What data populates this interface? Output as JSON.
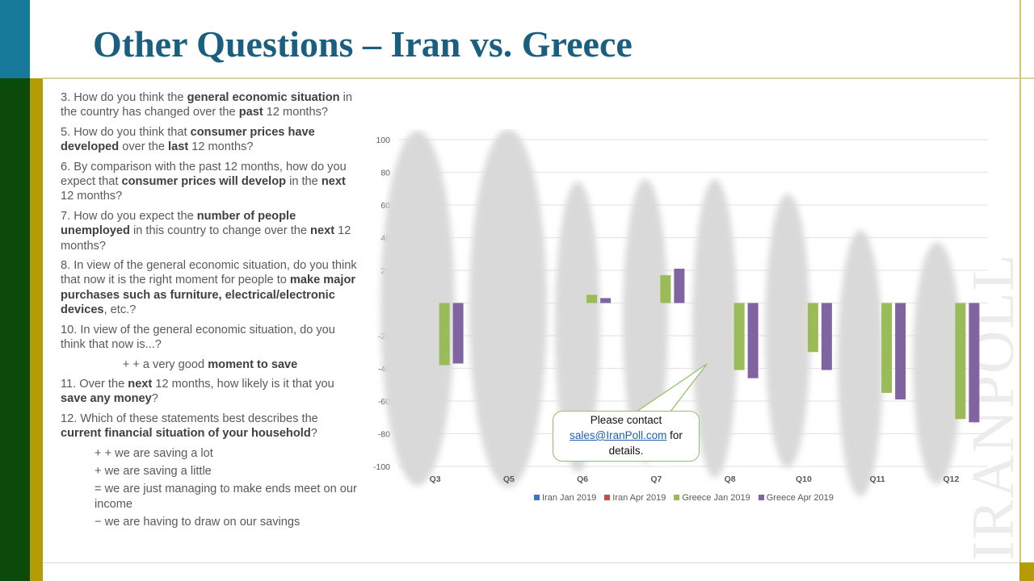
{
  "slide": {
    "title": "Other Questions – Iran vs. Greece",
    "watermark": "IRANPOLL",
    "colors": {
      "teal": "#177a9b",
      "dark_green": "#0b4a0a",
      "gold": "#b59b05",
      "title": "#1a5e80"
    }
  },
  "questions": [
    {
      "id": "q3",
      "parts": [
        "3. How do you think the ",
        "general economic situation",
        " in the country has changed over the ",
        "past",
        " 12 months?"
      ]
    },
    {
      "id": "q5",
      "parts": [
        "5. How do you think that ",
        "consumer prices have developed",
        " over the ",
        "last",
        " 12 months?"
      ]
    },
    {
      "id": "q6",
      "parts": [
        "6. By comparison with the past 12 months, how do you expect that ",
        "consumer prices will develop",
        " in the ",
        "next",
        " 12 months?"
      ]
    },
    {
      "id": "q7",
      "parts": [
        "7. How do you expect the ",
        "number of people unemployed",
        " in this country to change over the ",
        "next",
        " 12 months?"
      ]
    },
    {
      "id": "q8",
      "parts": [
        "8. In view of the general economic situation, do you think that now it is the right moment for people to ",
        "make major purchases such as furniture, electrical/electronic devices",
        ", etc.?"
      ]
    },
    {
      "id": "q10",
      "parts": [
        "10. In view of the general economic situation, do you think that now is...?"
      ]
    },
    {
      "id": "q10opt",
      "parts": [
        "+ + a very good ",
        "moment to save"
      ]
    },
    {
      "id": "q11",
      "parts": [
        "11. Over the ",
        "next",
        " 12 months, how likely is it that you ",
        "save any money",
        "?"
      ]
    },
    {
      "id": "q12",
      "parts": [
        "12. Which of these statements best describes the ",
        "current financial situation of your household",
        "?"
      ]
    }
  ],
  "q12_options": [
    "+ + we are saving a lot",
    "+ we are saving a little",
    "= we are just managing to make ends meet on our income",
    "− we are having to draw on our savings"
  ],
  "callout": {
    "line1": "Please contact",
    "email": "sales@IranPoll.com",
    "line2": " for",
    "line3": "details."
  },
  "chart_data": {
    "type": "bar",
    "title": "",
    "xlabel": "",
    "ylabel": "",
    "ylim": [
      -100,
      100
    ],
    "yticks": [
      100,
      80,
      60,
      40,
      20,
      0,
      -20,
      -40,
      -60,
      -80,
      -100
    ],
    "grid": true,
    "legend_position": "bottom",
    "categories": [
      "Q3",
      "Q5",
      "Q6",
      "Q7",
      "Q8",
      "Q10",
      "Q11",
      "Q12"
    ],
    "series": [
      {
        "name": "Iran Jan 2019",
        "color": "#4472c4",
        "values": [
          null,
          null,
          null,
          null,
          null,
          null,
          null,
          null
        ],
        "note": "obscured"
      },
      {
        "name": "Iran Apr 2019",
        "color": "#c0504d",
        "values": [
          null,
          null,
          null,
          null,
          null,
          null,
          null,
          null
        ],
        "note": "obscured"
      },
      {
        "name": "Greece Jan 2019",
        "color": "#9bbb59",
        "values": [
          -38,
          null,
          5,
          17,
          -41,
          -30,
          -55,
          -71
        ]
      },
      {
        "name": "Greece Apr 2019",
        "color": "#8064a2",
        "values": [
          -37,
          null,
          3,
          21,
          -46,
          -41,
          -59,
          -73
        ]
      }
    ]
  }
}
